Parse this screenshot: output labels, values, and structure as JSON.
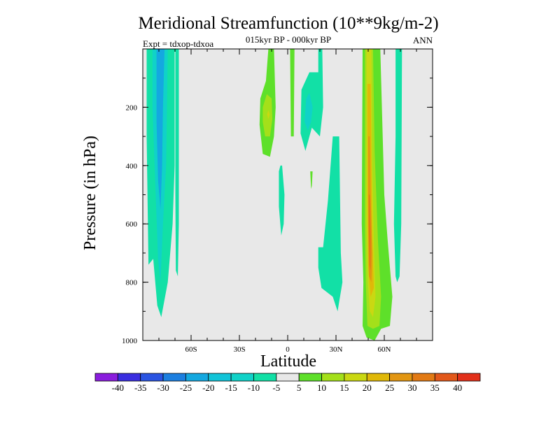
{
  "chart_data": {
    "type": "contour",
    "title": "Meridional Streamfunction (10**9kg/m-2)",
    "subtitle": "015kyr BP - 000kyr BP",
    "left_label": "Expt = tdxop-tdxoa",
    "right_label": "ANN",
    "xlabel": "Latitude",
    "ylabel": "Pressure (in hPa)",
    "xlim": [
      -90,
      90
    ],
    "ylim": [
      0,
      1000
    ],
    "y_inverted": true,
    "x_ticks": [
      {
        "value": -60,
        "label": "60S"
      },
      {
        "value": -30,
        "label": "30S"
      },
      {
        "value": 0,
        "label": "0"
      },
      {
        "value": 30,
        "label": "30N"
      },
      {
        "value": 60,
        "label": "60N"
      }
    ],
    "y_ticks": [
      {
        "value": 200,
        "label": "200"
      },
      {
        "value": 400,
        "label": "400"
      },
      {
        "value": 600,
        "label": "600"
      },
      {
        "value": 800,
        "label": "800"
      },
      {
        "value": 1000,
        "label": "1000"
      }
    ],
    "background_color": "#e8e8e8",
    "colorbar": {
      "colors": [
        "#8a1ddd",
        "#3a2ee0",
        "#2a54e2",
        "#1c7fe0",
        "#14a8e0",
        "#12c4d8",
        "#10d2c8",
        "#12e0a6",
        "#e8e8e8",
        "#5ee02a",
        "#a4e01a",
        "#cad812",
        "#e0b808",
        "#e29612",
        "#e27a14",
        "#e2581a",
        "#e2301a"
      ],
      "labels": [
        "-40",
        "-35",
        "-30",
        "-25",
        "-20",
        "-15",
        "-10",
        "-5",
        "5",
        "10",
        "15",
        "20",
        "25",
        "30",
        "35",
        "40"
      ]
    },
    "regions": [
      {
        "value_range": [
          -10,
          -5
        ],
        "color": "#12e0a6",
        "polygon": [
          [
            -87.6,
            0
          ],
          [
            -70.2,
            0
          ],
          [
            -70.2,
            400
          ],
          [
            -71.5,
            600
          ],
          [
            -74.5,
            800
          ],
          [
            -78.5,
            920
          ],
          [
            -81,
            880
          ],
          [
            -83.5,
            720
          ],
          [
            -86.5,
            740
          ],
          [
            -87.6,
            300
          ]
        ]
      },
      {
        "value_range": [
          -15,
          -10
        ],
        "color": "#10d2c8",
        "polygon": [
          [
            -84,
            0
          ],
          [
            -74.5,
            0
          ],
          [
            -75.5,
            400
          ],
          [
            -77.5,
            600
          ],
          [
            -79,
            800
          ],
          [
            -80.5,
            720
          ],
          [
            -82,
            500
          ],
          [
            -84,
            200
          ]
        ]
      },
      {
        "value_range": [
          -20,
          -15
        ],
        "color": "#14a8e0",
        "polygon": [
          [
            -81.5,
            0
          ],
          [
            -76.5,
            0
          ],
          [
            -77.5,
            200
          ],
          [
            -78,
            400
          ],
          [
            -79,
            550
          ],
          [
            -80.5,
            450
          ],
          [
            -81.5,
            250
          ]
        ]
      },
      {
        "value_range": [
          -10,
          -5
        ],
        "color": "#12e0a6",
        "polygon": [
          [
            -69.8,
            0
          ],
          [
            -67.6,
            0
          ],
          [
            -67.6,
            600
          ],
          [
            -68.2,
            780
          ],
          [
            -69.5,
            760
          ],
          [
            -69.8,
            500
          ]
        ]
      },
      {
        "value_range": [
          5,
          10
        ],
        "color": "#5ee02a",
        "polygon": [
          [
            -12,
            0
          ],
          [
            -8.5,
            0
          ],
          [
            -7.5,
            200
          ],
          [
            -8.5,
            300
          ],
          [
            -11,
            370
          ],
          [
            -15.5,
            360
          ],
          [
            -17.5,
            260
          ],
          [
            -17,
            170
          ],
          [
            -13.5,
            110
          ]
        ]
      },
      {
        "value_range": [
          10,
          15
        ],
        "color": "#a4e01a",
        "polygon": [
          [
            -13,
            155
          ],
          [
            -10,
            170
          ],
          [
            -9.5,
            240
          ],
          [
            -11,
            300
          ],
          [
            -14,
            300
          ],
          [
            -15.5,
            250
          ],
          [
            -15.5,
            200
          ]
        ]
      },
      {
        "value_range": [
          15,
          20
        ],
        "color": "#cad812",
        "polygon": [
          [
            -12,
            210
          ],
          [
            -11.2,
            225
          ],
          [
            -12,
            240
          ],
          [
            -12.8,
            225
          ]
        ]
      },
      {
        "value_range": [
          5,
          10
        ],
        "color": "#5ee02a",
        "polygon": [
          [
            1.5,
            0
          ],
          [
            4.2,
            0
          ],
          [
            3.8,
            300
          ],
          [
            2,
            300
          ]
        ]
      },
      {
        "value_range": [
          -10,
          -5
        ],
        "color": "#12e0a6",
        "polygon": [
          [
            19,
            0
          ],
          [
            21.5,
            0
          ],
          [
            22,
            200
          ],
          [
            20,
            300
          ],
          [
            15,
            270
          ],
          [
            11,
            350
          ],
          [
            8,
            290
          ],
          [
            8.5,
            140
          ],
          [
            13.5,
            80
          ],
          [
            19,
            80
          ]
        ]
      },
      {
        "value_range": [
          -15,
          -10
        ],
        "color": "#10d2c8",
        "polygon": [
          [
            13.5,
            150
          ],
          [
            15.5,
            200
          ],
          [
            14.5,
            250
          ],
          [
            12.5,
            280
          ],
          [
            10.5,
            250
          ],
          [
            11.5,
            170
          ]
        ]
      },
      {
        "value_range": [
          -10,
          -5
        ],
        "color": "#12e0a6",
        "polygon": [
          [
            -3.5,
            400
          ],
          [
            -2,
            500
          ],
          [
            -2.5,
            600
          ],
          [
            -4,
            640
          ],
          [
            -5.5,
            540
          ],
          [
            -5.5,
            420
          ],
          [
            -4.5,
            400
          ]
        ]
      },
      {
        "value_range": [
          5,
          10
        ],
        "color": "#5ee02a",
        "polygon": [
          [
            14,
            420
          ],
          [
            15.5,
            420
          ],
          [
            15,
            470
          ],
          [
            14.5,
            480
          ]
        ]
      },
      {
        "value_range": [
          -10,
          -5
        ],
        "color": "#12e0a6",
        "polygon": [
          [
            28,
            300
          ],
          [
            32,
            300
          ],
          [
            33,
            700
          ],
          [
            34,
            800
          ],
          [
            31,
            900
          ],
          [
            28,
            850
          ],
          [
            21,
            820
          ],
          [
            19,
            750
          ],
          [
            19,
            680
          ],
          [
            22,
            680
          ],
          [
            25,
            520
          ]
        ]
      },
      {
        "value_range": [
          5,
          10
        ],
        "color": "#5ee02a",
        "polygon": [
          [
            46.5,
            0
          ],
          [
            57.5,
            0
          ],
          [
            60,
            500
          ],
          [
            62,
            650
          ],
          [
            65,
            850
          ],
          [
            63.5,
            950
          ],
          [
            58,
            960
          ],
          [
            54,
            1000
          ],
          [
            49,
            990
          ],
          [
            46.5,
            950
          ],
          [
            47,
            800
          ],
          [
            46,
            600
          ]
        ]
      },
      {
        "value_range": [
          10,
          15
        ],
        "color": "#a4e01a",
        "polygon": [
          [
            48,
            0
          ],
          [
            53,
            0
          ],
          [
            54,
            350
          ],
          [
            56,
            650
          ],
          [
            58,
            850
          ],
          [
            57,
            950
          ],
          [
            53,
            960
          ],
          [
            49.5,
            950
          ],
          [
            48.5,
            800
          ],
          [
            48,
            600
          ]
        ]
      },
      {
        "value_range": [
          15,
          20
        ],
        "color": "#cad812",
        "polygon": [
          [
            49,
            0
          ],
          [
            52,
            0
          ],
          [
            52.5,
            400
          ],
          [
            53.5,
            650
          ],
          [
            54.5,
            850
          ],
          [
            53,
            920
          ],
          [
            51,
            900
          ],
          [
            49.8,
            800
          ],
          [
            49,
            600
          ]
        ]
      },
      {
        "value_range": [
          20,
          25
        ],
        "color": "#e0b808",
        "polygon": [
          [
            49.5,
            120
          ],
          [
            51.5,
            120
          ],
          [
            52,
            400
          ],
          [
            52.5,
            650
          ],
          [
            53.5,
            820
          ],
          [
            51.5,
            850
          ],
          [
            50,
            750
          ],
          [
            49.5,
            500
          ]
        ]
      },
      {
        "value_range": [
          25,
          30
        ],
        "color": "#e29612",
        "polygon": [
          [
            50,
            300
          ],
          [
            51,
            300
          ],
          [
            51.5,
            500
          ],
          [
            52.5,
            700
          ],
          [
            52,
            800
          ],
          [
            50.5,
            780
          ],
          [
            50,
            600
          ]
        ]
      },
      {
        "value_range": [
          30,
          35
        ],
        "color": "#e27a14",
        "polygon": [
          [
            50.4,
            500
          ],
          [
            51,
            500
          ],
          [
            51.6,
            650
          ],
          [
            51.5,
            760
          ],
          [
            50.8,
            740
          ],
          [
            50.4,
            620
          ]
        ]
      },
      {
        "value_range": [
          -10,
          -5
        ],
        "color": "#12e0a6",
        "polygon": [
          [
            67,
            0
          ],
          [
            71,
            0
          ],
          [
            70.5,
            600
          ],
          [
            69.5,
            780
          ],
          [
            68,
            800
          ],
          [
            67,
            780
          ],
          [
            66,
            600
          ],
          [
            67,
            300
          ]
        ]
      }
    ]
  }
}
